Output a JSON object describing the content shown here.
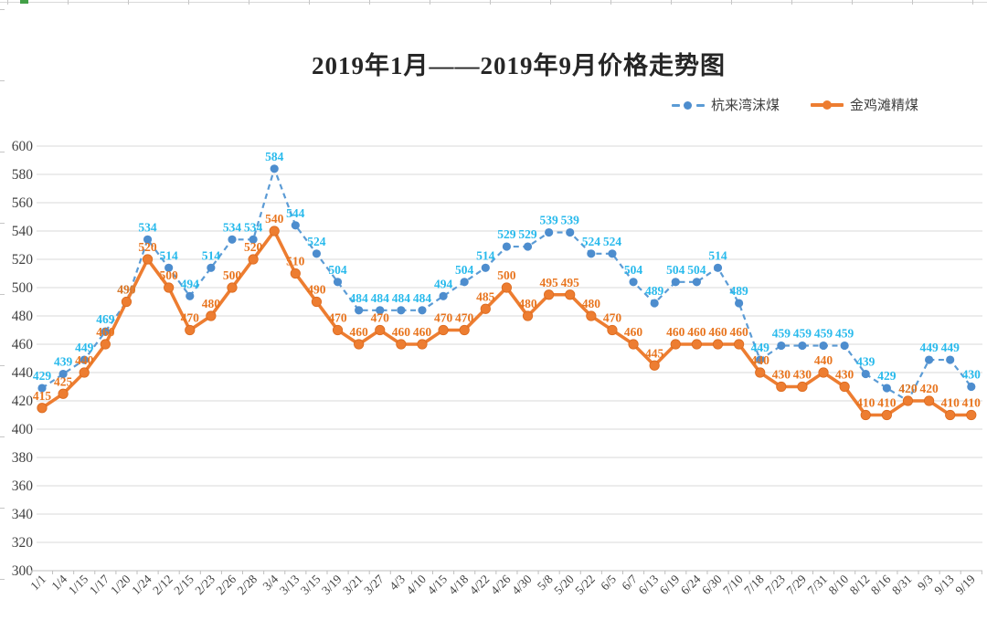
{
  "title": "2019年1月——2019年9月价格走势图",
  "legend": {
    "items": [
      {
        "label": "杭来湾沫煤",
        "color": "#5b9bd5",
        "style": "dashed"
      },
      {
        "label": "金鸡滩精煤",
        "color": "#ed7d31",
        "style": "solid"
      }
    ]
  },
  "colors": {
    "blue_line": "#5b9bd5",
    "blue_marker": "#4d8dce",
    "blue_label": "#29baec",
    "orange_line": "#ed7d31",
    "orange_label": "#e8751f",
    "gridline": "#d9d9d9",
    "axis_text": "#404040"
  },
  "chart_data": {
    "type": "line",
    "title": "2019年1月——2019年9月价格走势图",
    "categories": [
      "1/1",
      "1/4",
      "1/15",
      "1/17",
      "1/20",
      "1/24",
      "2/12",
      "2/15",
      "2/23",
      "2/26",
      "2/28",
      "3/4",
      "3/13",
      "3/15",
      "3/19",
      "3/21",
      "3/27",
      "4/3",
      "4/10",
      "4/15",
      "4/18",
      "4/22",
      "4/26",
      "4/30",
      "5/8",
      "5/20",
      "5/22",
      "6/5",
      "6/7",
      "6/13",
      "6/19",
      "6/24",
      "6/30",
      "7/10",
      "7/18",
      "7/23",
      "7/29",
      "7/31",
      "8/10",
      "8/12",
      "8/16",
      "8/31",
      "9/3",
      "9/13",
      "9/19"
    ],
    "series": [
      {
        "name": "杭来湾沫煤",
        "line_color": "#5b9bd5",
        "marker_color": "#4d8dce",
        "label_color": "#29baec",
        "dash": "dashed",
        "values": [
          429,
          439,
          449,
          469,
          490,
          534,
          514,
          494,
          514,
          534,
          534,
          584,
          544,
          524,
          504,
          484,
          484,
          484,
          484,
          494,
          504,
          514,
          529,
          529,
          539,
          539,
          524,
          524,
          504,
          489,
          504,
          504,
          514,
          489,
          449,
          459,
          459,
          459,
          459,
          439,
          429,
          420,
          449,
          449,
          430
        ]
      },
      {
        "name": "金鸡滩精煤",
        "line_color": "#ed7d31",
        "marker_color": "#ed7d31",
        "label_color": "#e8751f",
        "dash": "solid",
        "values": [
          415,
          425,
          440,
          460,
          490,
          520,
          500,
          470,
          480,
          500,
          520,
          540,
          510,
          490,
          470,
          460,
          470,
          460,
          460,
          470,
          470,
          485,
          500,
          480,
          495,
          495,
          480,
          470,
          460,
          445,
          460,
          460,
          460,
          460,
          440,
          430,
          430,
          440,
          430,
          410,
          410,
          420,
          420,
          410,
          410
        ]
      }
    ],
    "xlabel": "",
    "ylabel": "",
    "ylim": [
      300,
      600
    ],
    "ytick_step": 20,
    "grid": true,
    "legend_position": "top-right",
    "data_labels": true
  }
}
